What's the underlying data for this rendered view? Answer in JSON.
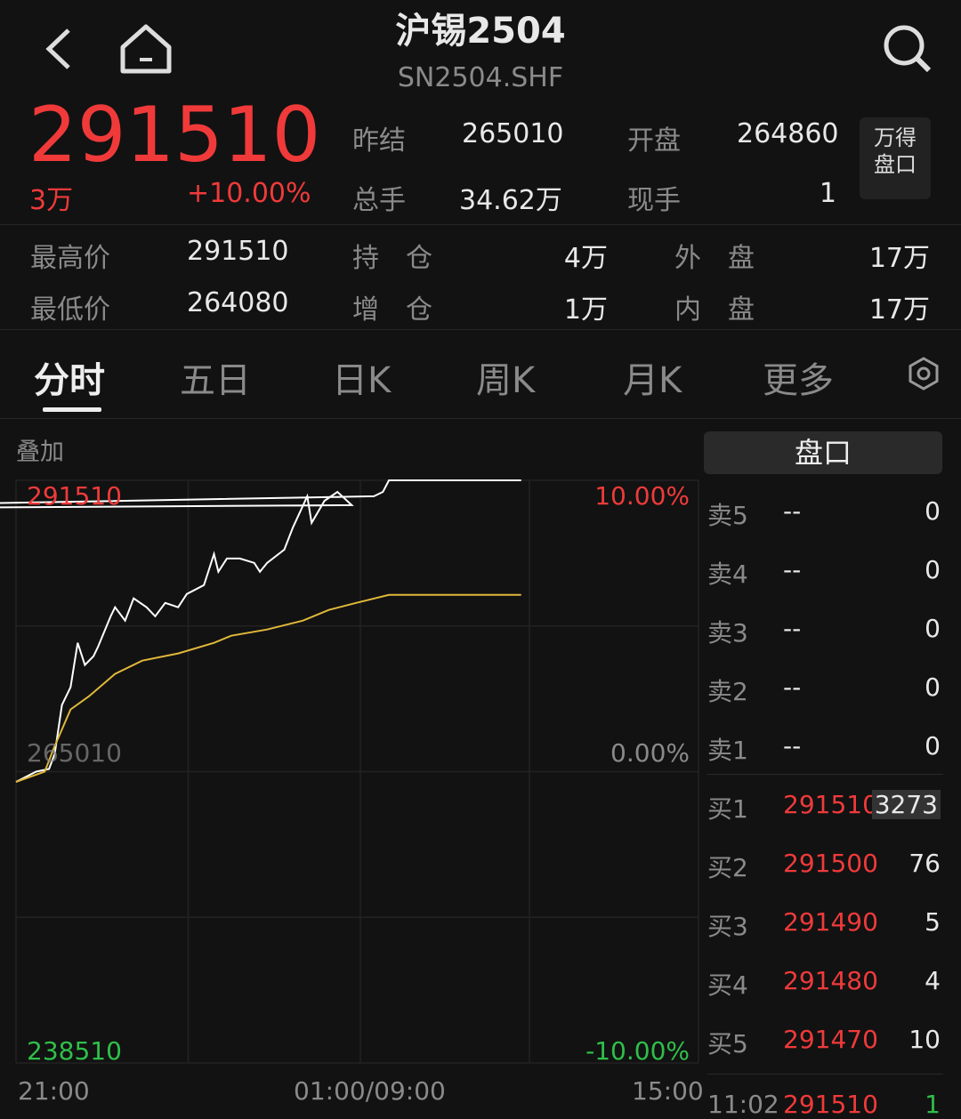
{
  "header": {
    "title": "沪锡2504",
    "subtitle": "SN2504.SHF",
    "back_icon": "chevron-left-icon",
    "home_icon": "home-icon",
    "search_icon": "search-icon"
  },
  "quote": {
    "price": "291510",
    "volume_short": "3万",
    "change_pct": "+10.00%",
    "stats": [
      {
        "label": "昨结",
        "value": "265010"
      },
      {
        "label": "开盘",
        "value": "264860"
      },
      {
        "label": "总手",
        "value": "34.62万"
      },
      {
        "label": "现手",
        "value": "1"
      }
    ],
    "wind_button": "万得\n盘口",
    "details": [
      {
        "label": "最高价",
        "value": "291510"
      },
      {
        "label": "持　仓",
        "value": "4万"
      },
      {
        "label": "外　盘",
        "value": "17万"
      },
      {
        "label": "最低价",
        "value": "264080"
      },
      {
        "label": "增　仓",
        "value": "1万"
      },
      {
        "label": "内　盘",
        "value": "17万"
      }
    ]
  },
  "tabs": [
    {
      "label": "分时",
      "active": true
    },
    {
      "label": "五日"
    },
    {
      "label": "日K"
    },
    {
      "label": "周K"
    },
    {
      "label": "月K"
    },
    {
      "label": "更多"
    }
  ],
  "settings_icon": "gear-icon",
  "overlay_label": "叠加",
  "orderbook": {
    "title": "盘口",
    "asks": [
      {
        "label": "卖5",
        "price": "--",
        "qty": "0"
      },
      {
        "label": "卖4",
        "price": "--",
        "qty": "0"
      },
      {
        "label": "卖3",
        "price": "--",
        "qty": "0"
      },
      {
        "label": "卖2",
        "price": "--",
        "qty": "0"
      },
      {
        "label": "卖1",
        "price": "--",
        "qty": "0"
      }
    ],
    "bids": [
      {
        "label": "买1",
        "price": "291510",
        "qty": "3273"
      },
      {
        "label": "买2",
        "price": "291500",
        "qty": "76"
      },
      {
        "label": "买3",
        "price": "291490",
        "qty": "5"
      },
      {
        "label": "买4",
        "price": "291480",
        "qty": "4"
      },
      {
        "label": "买5",
        "price": "291470",
        "qty": "10"
      }
    ],
    "trade": {
      "time": "11:02",
      "price": "291510",
      "qty": "1"
    }
  },
  "colors": {
    "up": "#f03a3a",
    "down": "#2fbf4a",
    "price_line": "#ffffff",
    "avg_line": "#e0b83a"
  },
  "chart_data": {
    "type": "line",
    "ylim": [
      238510,
      291510
    ],
    "y_base": 265010,
    "y_labels_left": [
      "291510",
      "265010",
      "238510"
    ],
    "y_labels_right": [
      "10.00%",
      "0.00%",
      "-10.00%"
    ],
    "x_labels": [
      "21:00",
      "01:00/09:00",
      "15:00"
    ],
    "grid": true,
    "series": [
      {
        "points": [
          [
            "21:00",
            264080
          ],
          [
            "21:14",
            265010
          ],
          [
            "21:23",
            265250
          ],
          [
            "21:27",
            266630
          ],
          [
            "21:32",
            271070
          ],
          [
            "21:38",
            272690
          ],
          [
            "21:43",
            276730
          ],
          [
            "21:48",
            274710
          ],
          [
            "21:54",
            275510
          ],
          [
            "21:57",
            276320
          ],
          [
            "22:06",
            279150
          ],
          [
            "22:09",
            279960
          ],
          [
            "22:16",
            278750
          ],
          [
            "22:22",
            280770
          ],
          [
            "22:31",
            279960
          ],
          [
            "22:37",
            279150
          ],
          [
            "22:44",
            280360
          ],
          [
            "22:53",
            279960
          ],
          [
            "22:59",
            281170
          ],
          [
            "23:11",
            281980
          ],
          [
            "23:18",
            284810
          ],
          [
            "23:21",
            283190
          ],
          [
            "23:27",
            284400
          ],
          [
            "23:36",
            284400
          ],
          [
            "23:46",
            284000
          ],
          [
            "23:50",
            283190
          ],
          [
            "23:55",
            284000
          ],
          [
            "00:07",
            285210
          ],
          [
            "00:13",
            287230
          ],
          [
            "00:23",
            290060
          ],
          [
            "00:26",
            287640
          ],
          [
            "00:35",
            289650
          ],
          [
            "00:44",
            290460
          ],
          [
            "00:54",
            289250
          ],
          [
            "01:00",
            288850
          ],
          [
            "09:09",
            290060
          ],
          [
            "09:15",
            290460
          ],
          [
            "09:19",
            291510
          ],
          [
            "11:02",
            291510
          ]
        ]
      },
      {
        "points": [
          [
            "21:00",
            264080
          ],
          [
            "21:20",
            265010
          ],
          [
            "21:26",
            267030
          ],
          [
            "21:38",
            270670
          ],
          [
            "21:51",
            271880
          ],
          [
            "22:09",
            273900
          ],
          [
            "22:28",
            275110
          ],
          [
            "22:53",
            275760
          ],
          [
            "23:18",
            276730
          ],
          [
            "23:30",
            277370
          ],
          [
            "23:55",
            277940
          ],
          [
            "00:20",
            278750
          ],
          [
            "00:38",
            279720
          ],
          [
            "00:57",
            280360
          ],
          [
            "09:19",
            281090
          ],
          [
            "11:02",
            281090
          ]
        ]
      }
    ]
  }
}
